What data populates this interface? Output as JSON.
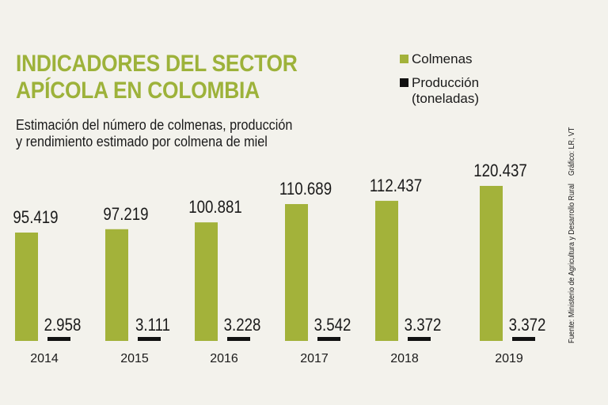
{
  "title_line1": "INDICADORES DEL SECTOR",
  "title_line2": "APÍCOLA EN COLOMBIA",
  "subtitle_line1": "Estimación del número de colmenas, producción",
  "subtitle_line2": "y rendimiento estimado por colmena de miel",
  "source": "Fuente: Ministerio de Agricultura y Desarrollo Rural",
  "credit": "Gráfico: LR, VT",
  "chart_data": {
    "type": "bar",
    "categories": [
      "2014",
      "2015",
      "2016",
      "2017",
      "2018",
      "2019"
    ],
    "series": [
      {
        "name": "Colmenas",
        "color": "#a3b23a",
        "values": [
          95419,
          97219,
          100881,
          110689,
          112437,
          120437
        ],
        "labels": [
          "95.419",
          "97.219",
          "100.881",
          "110.689",
          "112.437",
          "120.437"
        ]
      },
      {
        "name": "Producción (toneladas)",
        "color": "#111111",
        "values": [
          2958,
          3111,
          3228,
          3542,
          3372,
          3372
        ],
        "labels": [
          "2.958",
          "3.111",
          "3.228",
          "3.542",
          "3.372",
          "3.372"
        ]
      }
    ],
    "legend": {
      "position": "top-right",
      "items": [
        "Colmenas",
        "Producción",
        "(toneladas)"
      ]
    }
  }
}
